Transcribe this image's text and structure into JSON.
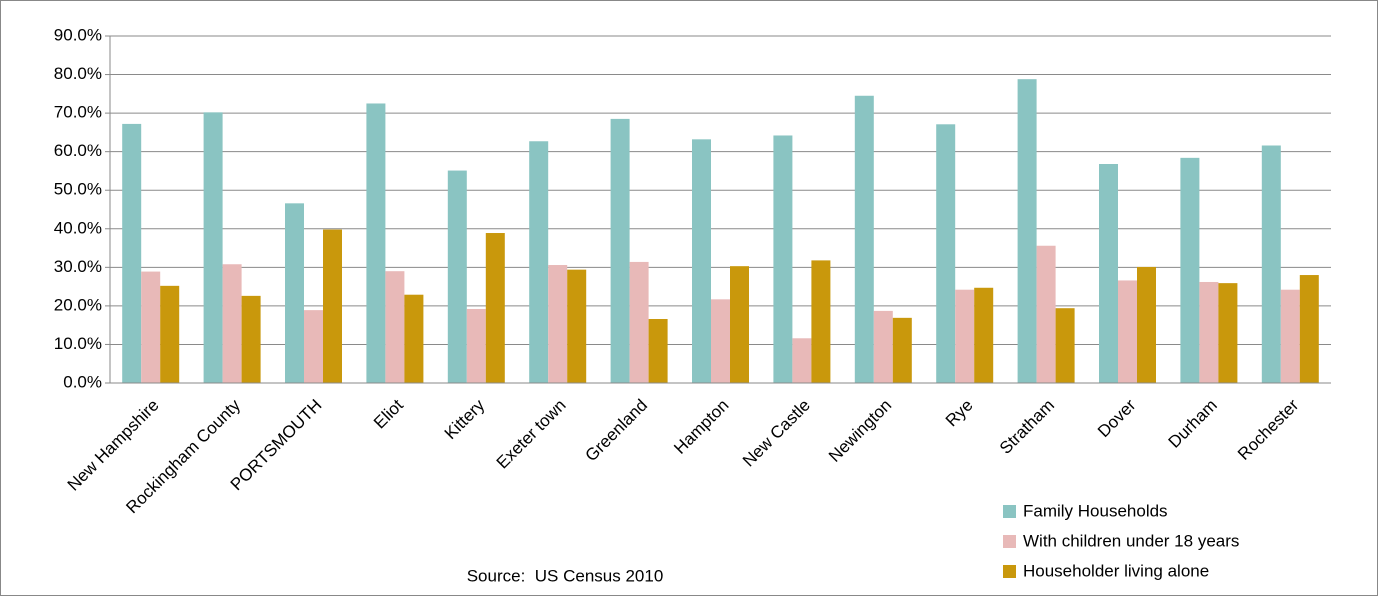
{
  "chart_data": {
    "type": "bar",
    "annotation": "Source:  US Census 2010",
    "categories": [
      "New Hampshire",
      "Rockingham County",
      "PORTSMOUTH",
      "Eliot",
      "Kittery",
      "Exeter town",
      "Greenland",
      "Hampton",
      "New Castle",
      "Newington",
      "Rye",
      "Stratham",
      "Dover",
      "Durham",
      "Rochester"
    ],
    "series": [
      {
        "name": "Family Households",
        "color": "#8ac4c2",
        "values": [
          67.2,
          70.2,
          46.6,
          72.5,
          55.1,
          62.7,
          68.5,
          63.2,
          64.2,
          74.5,
          67.1,
          78.8,
          56.8,
          58.4,
          61.6
        ]
      },
      {
        "name": "With children under 18 years",
        "color": "#e8b9b8",
        "values": [
          28.9,
          30.8,
          18.9,
          29.0,
          19.2,
          30.6,
          31.4,
          21.7,
          11.6,
          18.7,
          24.2,
          35.6,
          26.6,
          26.2,
          24.2
        ]
      },
      {
        "name": "Householder living alone",
        "color": "#c9980c",
        "values": [
          25.2,
          22.6,
          39.8,
          22.9,
          38.9,
          29.4,
          16.6,
          30.3,
          31.8,
          16.9,
          24.7,
          19.4,
          30.1,
          25.9,
          28.0
        ]
      }
    ],
    "ylim": [
      0,
      90
    ],
    "yticks": [
      {
        "value": 0,
        "label": "0.0%"
      },
      {
        "value": 10,
        "label": "10.0%"
      },
      {
        "value": 20,
        "label": "20.0%"
      },
      {
        "value": 30,
        "label": "30.0%"
      },
      {
        "value": 40,
        "label": "40.0%"
      },
      {
        "value": 50,
        "label": "50.0%"
      },
      {
        "value": 60,
        "label": "60.0%"
      },
      {
        "value": 70,
        "label": "70.0%"
      },
      {
        "value": 80,
        "label": "80.0%"
      },
      {
        "value": 90,
        "label": "90.0%"
      }
    ],
    "grid": true,
    "legend": "bottom-right"
  }
}
